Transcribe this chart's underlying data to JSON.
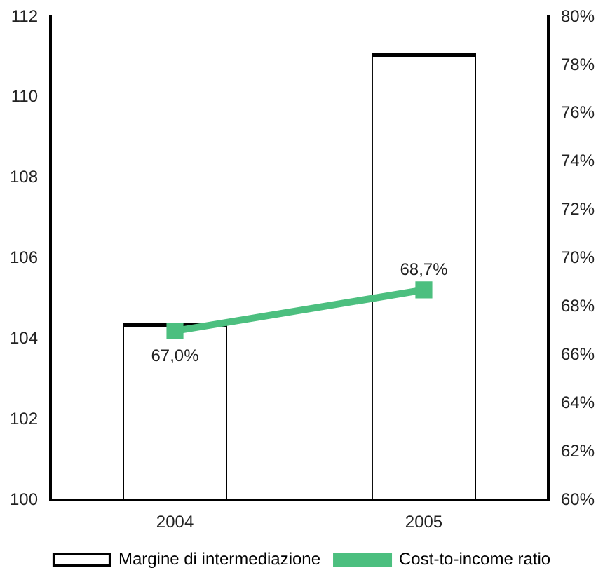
{
  "chart_data": {
    "type": "bar",
    "categories": [
      "2004",
      "2005"
    ],
    "series": [
      {
        "name": "Margine di intermediazione",
        "color": "#000000",
        "values": [
          104.4,
          111.1
        ]
      },
      {
        "name": "Cost-to-income ratio",
        "type": "line",
        "axis": "y2",
        "color": "#4cbf7f",
        "values": [
          67.0,
          68.7
        ],
        "value_labels": [
          "67,0%",
          "68,7%"
        ]
      }
    ],
    "ylim": [
      100,
      112
    ],
    "yticks": [
      100,
      102,
      104,
      106,
      108,
      110,
      112
    ],
    "y2lim": [
      60,
      80
    ],
    "y2ticks": [
      {
        "value": 60,
        "label": "60%"
      },
      {
        "value": 62,
        "label": "62%"
      },
      {
        "value": 64,
        "label": "64%"
      },
      {
        "value": 66,
        "label": "66%"
      },
      {
        "value": 68,
        "label": "68%"
      },
      {
        "value": 70,
        "label": "70%"
      },
      {
        "value": 72,
        "label": "72%"
      },
      {
        "value": 74,
        "label": "74%"
      },
      {
        "value": 76,
        "label": "76%"
      },
      {
        "value": 78,
        "label": "78%"
      },
      {
        "value": 80,
        "label": "80%"
      }
    ],
    "grid": false,
    "legend": "bottom",
    "marker": "square"
  }
}
